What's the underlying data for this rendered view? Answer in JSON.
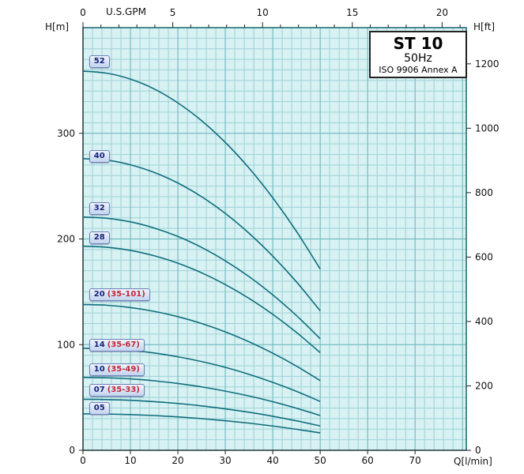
{
  "title_box": {
    "model": "ST 10",
    "frequency": "50Hz",
    "standard": "ISO 9906 Annex A"
  },
  "axes": {
    "left": {
      "label": "H[m]",
      "ticks": [
        0,
        100,
        200,
        300
      ],
      "range_m": [
        0,
        400
      ]
    },
    "right": {
      "label": "H[ft]",
      "ticks": [
        0,
        200,
        400,
        600,
        800,
        1000,
        1200
      ],
      "m_per_ft": 0.3048
    },
    "bottom": {
      "label": "Q[l/min]",
      "ticks": [
        0,
        10,
        20,
        30,
        40,
        50,
        60,
        70
      ],
      "range_lmin": [
        0,
        80.8
      ]
    },
    "top": {
      "label": "U.S.GPM",
      "ticks": [
        0,
        5,
        10,
        15,
        20
      ],
      "lmin_per_gpm": 3.785
    }
  },
  "grid": {
    "minor_x_lmin": 2,
    "major_x_lmin": 10,
    "minor_y_m": 10,
    "major_y_m": 100
  },
  "colors": {
    "plot_bg": "#d8f1f2",
    "grid_minor": "#9ed2d6",
    "grid_major": "#63b3bb",
    "frame": "#176671",
    "axis": "#222222",
    "curve": "#0e6e7e",
    "tick_text": "#111111",
    "label_text": "#14227d",
    "label_accent": "#c22737"
  },
  "chart_data": {
    "type": "line",
    "title": "ST 10 50Hz pump performance curves (ISO 9906 Annex A)",
    "xlabel": "Q[l/min]",
    "ylabel": "H[m]",
    "legend_position": "inline-left",
    "grid": true,
    "xlim": [
      0,
      80.8
    ],
    "ylim": [
      0,
      400
    ],
    "x": [
      0,
      5,
      10,
      15,
      20,
      25,
      30,
      35,
      40,
      45,
      50
    ],
    "series": [
      {
        "name": "52",
        "label_suffix": "",
        "label_q": 1.3,
        "label_h": 368,
        "values": [
          358.8,
          356.9,
          351.3,
          342.0,
          328.8,
          312.0,
          291.4,
          267.1,
          239.0,
          207.2,
          171.6
        ]
      },
      {
        "name": "40",
        "label_suffix": "",
        "label_q": 1.3,
        "label_h": 278,
        "values": [
          276.0,
          274.6,
          270.2,
          263.0,
          253.0,
          240.0,
          224.2,
          205.4,
          183.8,
          159.4,
          132.0
        ]
      },
      {
        "name": "32",
        "label_suffix": "",
        "label_q": 1.3,
        "label_h": 228.5,
        "values": [
          220.8,
          219.6,
          216.2,
          210.4,
          202.4,
          192.0,
          179.3,
          164.4,
          147.1,
          127.5,
          105.6
        ]
      },
      {
        "name": "28",
        "label_suffix": "",
        "label_q": 1.3,
        "label_h": 201,
        "values": [
          193.2,
          192.2,
          189.2,
          184.1,
          177.1,
          168.0,
          156.9,
          143.8,
          128.7,
          111.6,
          92.4
        ]
      },
      {
        "name": "20",
        "label_suffix": "(35-101)",
        "label_q": 1.3,
        "label_h": 147,
        "values": [
          138.0,
          137.3,
          135.1,
          131.5,
          126.5,
          120.0,
          112.1,
          102.7,
          91.9,
          79.7,
          66.0
        ]
      },
      {
        "name": "14",
        "label_suffix": "(35-67)",
        "label_q": 1.3,
        "label_h": 99.5,
        "values": [
          96.6,
          96.1,
          94.6,
          92.1,
          88.5,
          84.0,
          78.5,
          71.9,
          64.3,
          55.8,
          46.2
        ]
      },
      {
        "name": "10",
        "label_suffix": "(35-49)",
        "label_q": 1.3,
        "label_h": 76.5,
        "values": [
          69.0,
          68.6,
          67.6,
          65.8,
          63.2,
          60.0,
          56.0,
          51.4,
          46.0,
          39.8,
          33.0
        ]
      },
      {
        "name": "07",
        "label_suffix": "(35-33)",
        "label_q": 1.3,
        "label_h": 56.5,
        "values": [
          48.3,
          48.0,
          47.3,
          46.0,
          44.3,
          42.0,
          39.2,
          36.0,
          32.2,
          27.9,
          23.1
        ]
      },
      {
        "name": "05",
        "label_suffix": "",
        "label_q": 1.3,
        "label_h": 40,
        "values": [
          34.5,
          34.3,
          33.8,
          32.9,
          31.6,
          30.0,
          28.0,
          25.7,
          23.0,
          19.9,
          16.5
        ]
      }
    ]
  }
}
